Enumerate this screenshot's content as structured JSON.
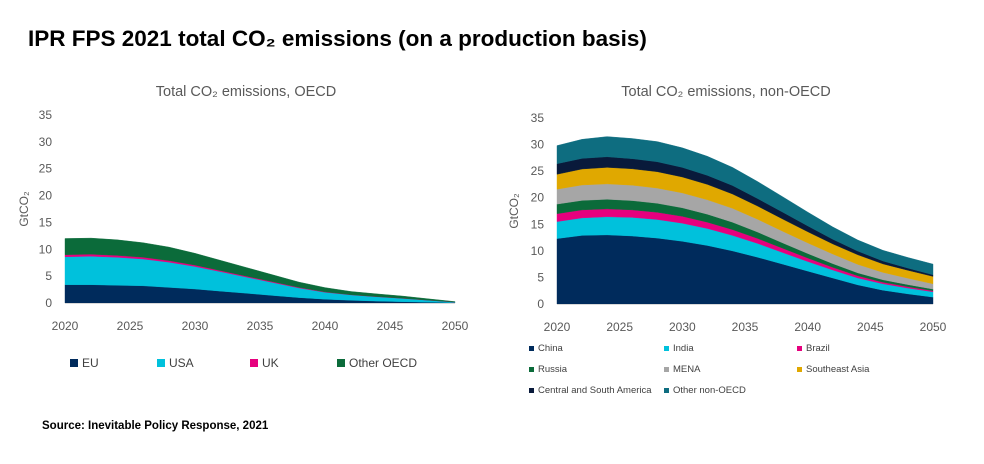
{
  "title": "IPR FPS 2021 total CO₂ emissions (on a production basis)",
  "source": "Source: Inevitable Policy Response, 2021",
  "chart_data": [
    {
      "type": "area",
      "stacked": true,
      "title": "Total CO₂ emissions, OECD",
      "ylabel": "GtCO₂",
      "xlabel": "",
      "x": [
        2020,
        2022,
        2024,
        2026,
        2028,
        2030,
        2032,
        2034,
        2036,
        2038,
        2040,
        2042,
        2044,
        2046,
        2048,
        2050
      ],
      "xticks": [
        2020,
        2025,
        2030,
        2035,
        2040,
        2045,
        2050
      ],
      "yticks": [
        0,
        5,
        10,
        15,
        20,
        25,
        30,
        35
      ],
      "ylim": [
        0,
        35
      ],
      "legend_position": "bottom",
      "series": [
        {
          "name": "EU",
          "color": "#002b5c",
          "values": [
            3.4,
            3.4,
            3.3,
            3.2,
            2.9,
            2.6,
            2.2,
            1.8,
            1.4,
            1.0,
            0.7,
            0.5,
            0.35,
            0.25,
            0.15,
            0.05
          ]
        },
        {
          "name": "USA",
          "color": "#00c1dc",
          "values": [
            5.2,
            5.3,
            5.2,
            5.0,
            4.7,
            4.2,
            3.6,
            3.0,
            2.4,
            1.8,
            1.3,
            1.0,
            0.8,
            0.6,
            0.35,
            0.1
          ]
        },
        {
          "name": "UK",
          "color": "#e6007e",
          "values": [
            0.4,
            0.38,
            0.36,
            0.33,
            0.3,
            0.26,
            0.22,
            0.18,
            0.14,
            0.1,
            0.07,
            0.05,
            0.04,
            0.03,
            0.02,
            0.01
          ]
        },
        {
          "name": "Other OECD",
          "color": "#0b6b3a",
          "values": [
            3.0,
            3.0,
            2.9,
            2.7,
            2.5,
            2.2,
            1.9,
            1.6,
            1.3,
            1.0,
            0.8,
            0.6,
            0.5,
            0.4,
            0.25,
            0.1
          ]
        }
      ]
    },
    {
      "type": "area",
      "stacked": true,
      "title": "Total CO₂ emissions, non-OECD",
      "ylabel": "GtCO₂",
      "xlabel": "",
      "x": [
        2020,
        2022,
        2024,
        2026,
        2028,
        2030,
        2032,
        2034,
        2036,
        2038,
        2040,
        2042,
        2044,
        2046,
        2048,
        2050
      ],
      "xticks": [
        2020,
        2025,
        2030,
        2035,
        2040,
        2045,
        2050
      ],
      "yticks": [
        0,
        5,
        10,
        15,
        20,
        25,
        30,
        35
      ],
      "ylim": [
        0,
        35
      ],
      "legend_position": "bottom",
      "series": [
        {
          "name": "China",
          "color": "#002b5c",
          "values": [
            12.3,
            12.9,
            13.0,
            12.8,
            12.4,
            11.8,
            11.0,
            10.0,
            8.8,
            7.5,
            6.2,
            4.9,
            3.6,
            2.6,
            1.9,
            1.3
          ]
        },
        {
          "name": "India",
          "color": "#00c1dc",
          "values": [
            3.2,
            3.3,
            3.4,
            3.5,
            3.5,
            3.4,
            3.2,
            2.9,
            2.6,
            2.2,
            1.8,
            1.5,
            1.3,
            1.2,
            1.1,
            1.0
          ]
        },
        {
          "name": "Brazil",
          "color": "#e6007e",
          "values": [
            1.5,
            1.5,
            1.5,
            1.4,
            1.35,
            1.3,
            1.2,
            1.1,
            0.95,
            0.8,
            0.65,
            0.5,
            0.4,
            0.3,
            0.25,
            0.2
          ]
        },
        {
          "name": "Russia",
          "color": "#0b6b3a",
          "values": [
            1.8,
            1.8,
            1.8,
            1.75,
            1.7,
            1.6,
            1.5,
            1.4,
            1.2,
            1.0,
            0.85,
            0.7,
            0.55,
            0.45,
            0.4,
            0.3
          ]
        },
        {
          "name": "MENA",
          "color": "#a6a6a6",
          "values": [
            2.8,
            2.9,
            2.9,
            2.9,
            2.85,
            2.8,
            2.7,
            2.6,
            2.4,
            2.2,
            2.0,
            1.8,
            1.6,
            1.4,
            1.2,
            1.0
          ]
        },
        {
          "name": "Southeast Asia",
          "color": "#e0a800",
          "values": [
            2.8,
            3.0,
            3.1,
            3.1,
            3.1,
            3.0,
            2.9,
            2.7,
            2.5,
            2.3,
            2.1,
            1.9,
            1.8,
            1.6,
            1.5,
            1.4
          ]
        },
        {
          "name": "Central and South America",
          "color": "#091a3b",
          "values": [
            2.0,
            2.0,
            2.0,
            1.9,
            1.85,
            1.8,
            1.7,
            1.6,
            1.4,
            1.3,
            1.1,
            0.9,
            0.7,
            0.55,
            0.4,
            0.3
          ]
        },
        {
          "name": "Other non-OECD",
          "color": "#0e6d80",
          "values": [
            3.4,
            3.6,
            3.8,
            3.8,
            3.8,
            3.7,
            3.6,
            3.4,
            3.2,
            2.9,
            2.6,
            2.3,
            2.1,
            2.0,
            2.0,
            2.0
          ]
        }
      ]
    }
  ]
}
